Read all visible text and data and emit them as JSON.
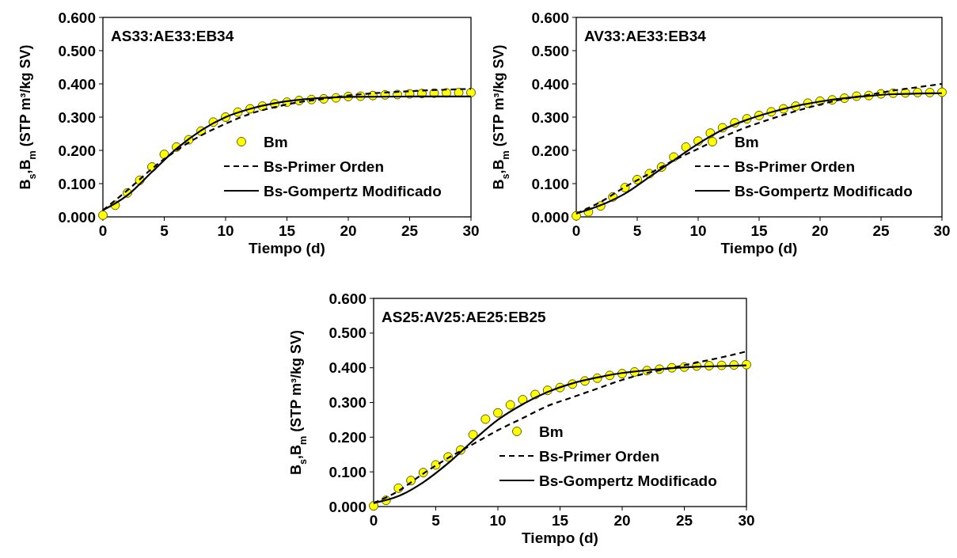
{
  "chart_data": [
    {
      "type": "scatter",
      "title": "AS33:AE33:EB34",
      "xlabel": "Tiempo (d)",
      "ylabel": "B$_{s}$,B$_{m}$ (STP m³/kg SV)",
      "xlim": [
        0,
        30
      ],
      "xticks": [
        0,
        5,
        10,
        15,
        20,
        25,
        30
      ],
      "ylim": [
        0,
        0.6
      ],
      "yticks": [
        {
          "value": 0,
          "label": "0.000"
        },
        {
          "value": 0.1,
          "label": "0.100"
        },
        {
          "value": 0.2,
          "label": "0.200"
        },
        {
          "value": 0.3,
          "label": "0.300"
        },
        {
          "value": 0.4,
          "label": "0.400"
        },
        {
          "value": 0.5,
          "label": "0.500"
        },
        {
          "value": 0.6,
          "label": "0.600"
        }
      ],
      "legend": "bottom right",
      "grid": false,
      "series": [
        {
          "name": "Bm",
          "type": "scatter",
          "marker": "circle",
          "color": "#ffff00",
          "x": [
            0,
            1,
            2,
            3,
            4,
            5,
            6,
            7,
            8,
            9,
            10,
            11,
            12,
            13,
            14,
            15,
            16,
            17,
            18,
            19,
            20,
            21,
            22,
            23,
            24,
            25,
            26,
            27,
            28,
            29,
            30
          ],
          "values": [
            0.005,
            0.035,
            0.072,
            0.11,
            0.15,
            0.188,
            0.21,
            0.232,
            0.258,
            0.285,
            0.3,
            0.315,
            0.325,
            0.333,
            0.34,
            0.345,
            0.35,
            0.353,
            0.355,
            0.358,
            0.362,
            0.363,
            0.365,
            0.367,
            0.368,
            0.37,
            0.371,
            0.372,
            0.373,
            0.374,
            0.374
          ]
        },
        {
          "name": "Bs-Primer Orden",
          "type": "line",
          "line_style": "dashed",
          "color": "#000000",
          "x": [
            0,
            2,
            4,
            6,
            8,
            10,
            12,
            14,
            16,
            18,
            20,
            25,
            30
          ],
          "values": [
            0.02,
            0.08,
            0.145,
            0.2,
            0.245,
            0.28,
            0.31,
            0.33,
            0.345,
            0.355,
            0.365,
            0.378,
            0.385
          ]
        },
        {
          "name": "Bs-Gompertz Modificado",
          "type": "line",
          "line_style": "solid",
          "color": "#000000",
          "x": [
            0,
            2,
            4,
            6,
            8,
            10,
            12,
            14,
            16,
            18,
            20,
            25,
            30
          ],
          "values": [
            0.02,
            0.065,
            0.135,
            0.205,
            0.26,
            0.3,
            0.325,
            0.342,
            0.352,
            0.358,
            0.361,
            0.362,
            0.362
          ]
        }
      ]
    },
    {
      "type": "scatter",
      "title": "AV33:AE33:EB34",
      "xlabel": "Tiempo (d)",
      "ylabel": "B$_{s}$,B$_{m}$ (STP m³/kg SV)",
      "xlim": [
        0,
        30
      ],
      "xticks": [
        0,
        5,
        10,
        15,
        20,
        25,
        30
      ],
      "ylim": [
        0,
        0.6
      ],
      "yticks": [
        {
          "value": 0,
          "label": "0.000"
        },
        {
          "value": 0.1,
          "label": "0.100"
        },
        {
          "value": 0.2,
          "label": "0.200"
        },
        {
          "value": 0.3,
          "label": "0.300"
        },
        {
          "value": 0.4,
          "label": "0.400"
        },
        {
          "value": 0.5,
          "label": "0.500"
        },
        {
          "value": 0.6,
          "label": "0.600"
        }
      ],
      "legend": "bottom right",
      "grid": false,
      "series": [
        {
          "name": "Bm",
          "type": "scatter",
          "marker": "circle",
          "color": "#ffff00",
          "x": [
            0,
            1,
            2,
            3,
            4,
            5,
            6,
            7,
            8,
            9,
            10,
            11,
            12,
            13,
            14,
            15,
            16,
            17,
            18,
            19,
            20,
            21,
            22,
            23,
            24,
            25,
            26,
            27,
            28,
            29,
            30
          ],
          "values": [
            0.003,
            0.015,
            0.033,
            0.06,
            0.088,
            0.112,
            0.13,
            0.15,
            0.18,
            0.21,
            0.228,
            0.252,
            0.268,
            0.283,
            0.295,
            0.305,
            0.316,
            0.325,
            0.333,
            0.342,
            0.348,
            0.352,
            0.357,
            0.363,
            0.365,
            0.37,
            0.372,
            0.373,
            0.374,
            0.374,
            0.375
          ]
        },
        {
          "name": "Bs-Primer Orden",
          "type": "line",
          "line_style": "dashed",
          "color": "#000000",
          "x": [
            0,
            2,
            4,
            6,
            8,
            10,
            12,
            14,
            16,
            18,
            20,
            22,
            24,
            26,
            28,
            30
          ],
          "values": [
            0.01,
            0.045,
            0.09,
            0.13,
            0.17,
            0.205,
            0.24,
            0.27,
            0.295,
            0.318,
            0.338,
            0.355,
            0.367,
            0.38,
            0.39,
            0.4
          ]
        },
        {
          "name": "Bs-Gompertz Modificado",
          "type": "line",
          "line_style": "solid",
          "color": "#000000",
          "x": [
            0,
            2,
            4,
            6,
            8,
            10,
            12,
            14,
            16,
            18,
            20,
            22,
            24,
            26,
            28,
            30
          ],
          "values": [
            0.01,
            0.035,
            0.07,
            0.12,
            0.17,
            0.22,
            0.262,
            0.292,
            0.315,
            0.333,
            0.347,
            0.357,
            0.364,
            0.369,
            0.371,
            0.372
          ]
        }
      ]
    },
    {
      "type": "scatter",
      "title": "AS25:AV25:AE25:EB25",
      "xlabel": "Tiempo (d)",
      "ylabel": "B$_{s}$,B$_{m}$ (STP m³/kg SV)",
      "xlim": [
        0,
        30
      ],
      "xticks": [
        0,
        5,
        10,
        15,
        20,
        25,
        30
      ],
      "ylim": [
        0,
        0.6
      ],
      "yticks": [
        {
          "value": 0,
          "label": "0.000"
        },
        {
          "value": 0.1,
          "label": "0.100"
        },
        {
          "value": 0.2,
          "label": "0.200"
        },
        {
          "value": 0.3,
          "label": "0.300"
        },
        {
          "value": 0.4,
          "label": "0.400"
        },
        {
          "value": 0.5,
          "label": "0.500"
        },
        {
          "value": 0.6,
          "label": "0.600"
        }
      ],
      "legend": "bottom right",
      "grid": false,
      "series": [
        {
          "name": "Bm",
          "type": "scatter",
          "marker": "circle",
          "color": "#ffff00",
          "x": [
            0,
            1,
            2,
            3,
            4,
            5,
            6,
            7,
            8,
            9,
            10,
            11,
            12,
            13,
            14,
            15,
            16,
            17,
            18,
            19,
            20,
            21,
            22,
            23,
            24,
            25,
            26,
            27,
            28,
            29,
            30
          ],
          "values": [
            0.002,
            0.018,
            0.053,
            0.075,
            0.098,
            0.12,
            0.143,
            0.163,
            0.207,
            0.252,
            0.27,
            0.293,
            0.308,
            0.323,
            0.335,
            0.343,
            0.353,
            0.362,
            0.37,
            0.378,
            0.383,
            0.388,
            0.392,
            0.396,
            0.4,
            0.402,
            0.405,
            0.406,
            0.407,
            0.408,
            0.409
          ]
        },
        {
          "name": "Bs-Primer Orden",
          "type": "line",
          "line_style": "dashed",
          "color": "#000000",
          "x": [
            0,
            2,
            4,
            6,
            8,
            10,
            12,
            14,
            16,
            18,
            20,
            22,
            24,
            26,
            28,
            30
          ],
          "values": [
            0.01,
            0.045,
            0.095,
            0.14,
            0.18,
            0.22,
            0.255,
            0.29,
            0.315,
            0.34,
            0.365,
            0.385,
            0.4,
            0.415,
            0.43,
            0.447
          ]
        },
        {
          "name": "Bs-Gompertz Modificado",
          "type": "line",
          "line_style": "solid",
          "color": "#000000",
          "x": [
            0,
            2,
            4,
            6,
            8,
            10,
            12,
            14,
            16,
            18,
            20,
            22,
            24,
            26,
            28,
            30
          ],
          "values": [
            0.01,
            0.03,
            0.07,
            0.125,
            0.19,
            0.25,
            0.295,
            0.33,
            0.355,
            0.372,
            0.385,
            0.393,
            0.399,
            0.403,
            0.405,
            0.407
          ]
        }
      ]
    }
  ]
}
